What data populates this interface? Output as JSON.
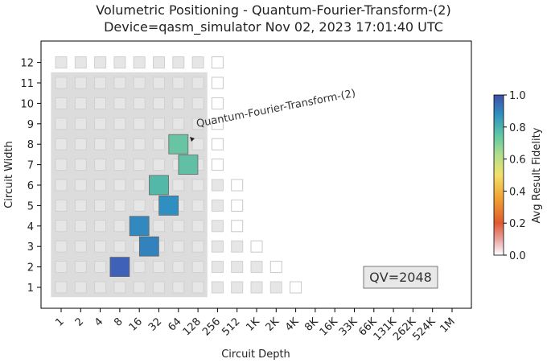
{
  "title": "Volumetric Positioning - Quantum-Fourier-Transform-(2)",
  "subtitle": "Device=qasm_simulator  Nov 02, 2023 17:01:40 UTC",
  "annotation": "Quantum-Fourier-Transform-(2)",
  "qv_label": "QV=2048",
  "colors": {
    "grid_cell": "#e6e6e6",
    "qv_region": "#dcdcdc",
    "high": "#3f62b8",
    "mid": "#2f8fc0",
    "low": "#6cc6a2"
  },
  "chart_data": {
    "type": "heatmap",
    "xlabel": "Circuit Depth",
    "ylabel": "Circuit Width",
    "x_ticks": [
      "1",
      "2",
      "4",
      "8",
      "16",
      "32",
      "64",
      "128",
      "256",
      "512",
      "1K",
      "2K",
      "4K",
      "8K",
      "16K",
      "33K",
      "66K",
      "131K",
      "262K",
      "524K",
      "1M"
    ],
    "y_ticks": [
      "1",
      "2",
      "3",
      "4",
      "5",
      "6",
      "7",
      "8",
      "9",
      "10",
      "11",
      "12"
    ],
    "colorbar": {
      "label": "Avg Result Fidelity",
      "ticks": [
        "0.0",
        "0.2",
        "0.4",
        "0.6",
        "0.8",
        "1.0"
      ],
      "range": [
        0,
        1
      ]
    },
    "quantum_volume": 2048,
    "qv_region": {
      "max_depth_index": 7,
      "max_width": 11
    },
    "volumetric_background": [
      {
        "width": 12,
        "grey_depths": 8,
        "outline_depths": 1
      },
      {
        "width": 11,
        "grey_depths": 8,
        "outline_depths": 1
      },
      {
        "width": 10,
        "grey_depths": 8,
        "outline_depths": 1
      },
      {
        "width": 9,
        "grey_depths": 8,
        "outline_depths": 1
      },
      {
        "width": 8,
        "grey_depths": 8,
        "outline_depths": 1
      },
      {
        "width": 7,
        "grey_depths": 8,
        "outline_depths": 1
      },
      {
        "width": 6,
        "grey_depths": 9,
        "outline_depths": 1
      },
      {
        "width": 5,
        "grey_depths": 9,
        "outline_depths": 1
      },
      {
        "width": 4,
        "grey_depths": 9,
        "outline_depths": 1
      },
      {
        "width": 3,
        "grey_depths": 10,
        "outline_depths": 1
      },
      {
        "width": 2,
        "grey_depths": 11,
        "outline_depths": 1
      },
      {
        "width": 1,
        "grey_depths": 12,
        "outline_depths": 1
      }
    ],
    "points": [
      {
        "width": 2,
        "depth": "8",
        "fidelity": 0.96
      },
      {
        "width": 3,
        "depth": "16",
        "fidelity": 0.88
      },
      {
        "width": 4,
        "depth": "16",
        "fidelity": 0.86
      },
      {
        "width": 5,
        "depth": "32",
        "fidelity": 0.84
      },
      {
        "width": 6,
        "depth": "32",
        "fidelity": 0.78
      },
      {
        "width": 7,
        "depth": "64",
        "fidelity": 0.74
      },
      {
        "width": 8,
        "depth": "64",
        "fidelity": 0.71
      }
    ]
  }
}
